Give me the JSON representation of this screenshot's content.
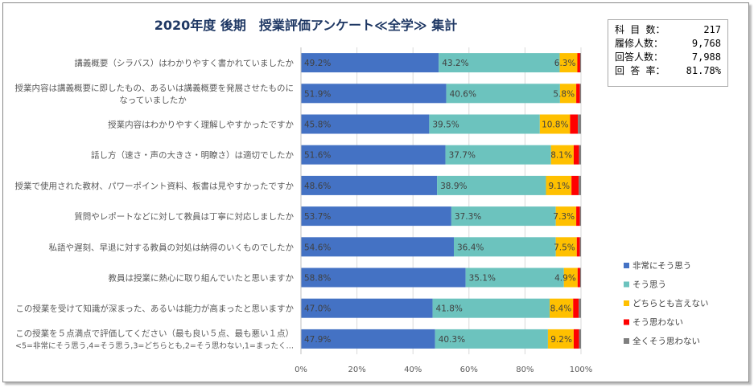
{
  "stats": [
    {
      "label": "科 目 数：",
      "value": "217"
    },
    {
      "label": "履修人数：",
      "value": "9,768"
    },
    {
      "label": "回答人数：",
      "value": "7,988"
    },
    {
      "label": "回 答 率：",
      "value": "81.78%"
    }
  ],
  "chart_data": {
    "type": "bar",
    "orientation": "horizontal-stacked-100",
    "title": "2020年度 後期　授業評価アンケート≪全学≫ 集計",
    "categories": [
      [
        "講義概要（シラバス）はわかりやすく書かれていましたか"
      ],
      [
        "授業内容は講義概要に即したもの、あるいは講義概要を発展させたものに",
        "なっていましたか"
      ],
      [
        "授業内容はわかりやすく理解しやすかったですか"
      ],
      [
        "話し方（速さ・声の大きさ・明瞭さ）は適切でしたか"
      ],
      [
        "授業で使用された教材、パワーポイント資料、板書は見やすかったですか"
      ],
      [
        "質問やレポートなどに対して教員は丁寧に対応しましたか"
      ],
      [
        "私語や遅刻、早退に対する教員の対処は納得のいくものでしたか"
      ],
      [
        "教員は授業に熱心に取り組んでいたと思いますか"
      ],
      [
        "この授業を受けて知識が深まった、あるいは能力が高まったと思いますか"
      ],
      [
        "この授業を５点満点で評価してください（最も良い５点、最も悪い１点）",
        "<5=非常にそう思う,4=そう思う,3=どちらとも,2=そう思わない,1=まったく…"
      ]
    ],
    "series": [
      {
        "name": "非常にそう思う",
        "color": "#4472c4",
        "values": [
          49.2,
          51.9,
          45.8,
          51.6,
          48.6,
          53.7,
          54.6,
          58.8,
          47.0,
          47.9
        ],
        "labeled": true
      },
      {
        "name": "そう思う",
        "color": "#6cc3be",
        "values": [
          43.2,
          40.6,
          39.5,
          37.7,
          38.9,
          37.3,
          36.4,
          35.1,
          41.8,
          40.3
        ],
        "labeled": true
      },
      {
        "name": "どちらとも言えない",
        "color": "#ffc000",
        "values": [
          6.3,
          5.8,
          10.8,
          8.1,
          9.1,
          7.3,
          7.5,
          4.9,
          8.4,
          9.2
        ],
        "labeled": true
      },
      {
        "name": "そう思わない",
        "color": "#ff0000",
        "values": [
          1.0,
          1.3,
          2.8,
          1.9,
          2.6,
          1.3,
          1.1,
          0.9,
          2.0,
          1.9
        ],
        "labeled": false
      },
      {
        "name": "全くそう思わない",
        "color": "#7f7f7f",
        "values": [
          0.3,
          0.4,
          1.1,
          0.7,
          0.8,
          0.4,
          0.4,
          0.3,
          0.8,
          0.7
        ],
        "labeled": false
      }
    ],
    "xticks": [
      "0%",
      "20%",
      "40%",
      "60%",
      "80%",
      "100%"
    ],
    "xlim": [
      0,
      100
    ],
    "legend": "right"
  }
}
